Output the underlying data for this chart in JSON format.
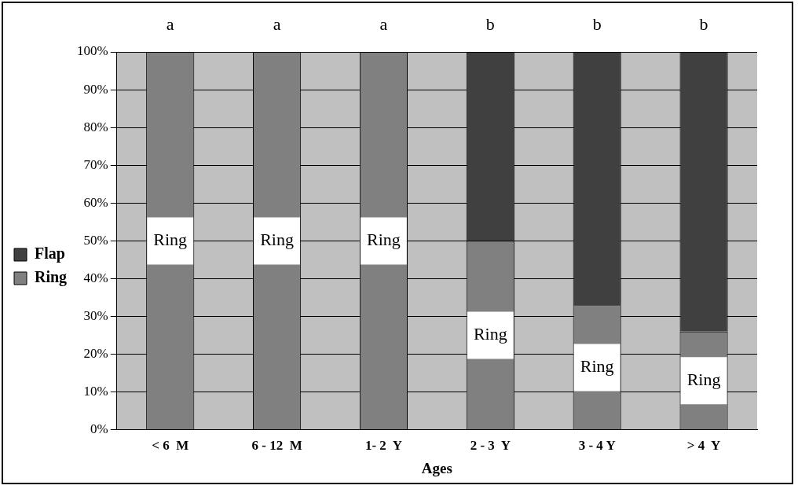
{
  "chart_data": {
    "type": "bar",
    "stacked": true,
    "xlabel": "Ages",
    "categories": [
      "< 6  M",
      "6 - 12  M",
      "1- 2  Y",
      "2 - 3  Y",
      "3 - 4 Y",
      "> 4  Y"
    ],
    "series": [
      {
        "name": "Ring",
        "color": "#808080",
        "values": [
          100,
          100,
          100,
          50,
          33,
          26
        ]
      },
      {
        "name": "Flap",
        "color": "#404040",
        "values": [
          0,
          0,
          0,
          50,
          67,
          74
        ]
      }
    ],
    "ylim": [
      0,
      100
    ],
    "yticks": [
      {
        "value": 0,
        "label": "0%"
      },
      {
        "value": 10,
        "label": "10%"
      },
      {
        "value": 20,
        "label": "20%"
      },
      {
        "value": 30,
        "label": "30%"
      },
      {
        "value": 40,
        "label": "40%"
      },
      {
        "value": 50,
        "label": "50%"
      },
      {
        "value": 60,
        "label": "60%"
      },
      {
        "value": 70,
        "label": "70%"
      },
      {
        "value": 80,
        "label": "80%"
      },
      {
        "value": 90,
        "label": "90%"
      },
      {
        "value": 100,
        "label": "100%"
      }
    ],
    "grid": "y",
    "legend": "left",
    "annotations": [
      "a",
      "a",
      "a",
      "b",
      "b",
      "b",
      "Ring",
      "Ring",
      "Ring",
      "Ring",
      "Ring",
      "Ring"
    ]
  }
}
